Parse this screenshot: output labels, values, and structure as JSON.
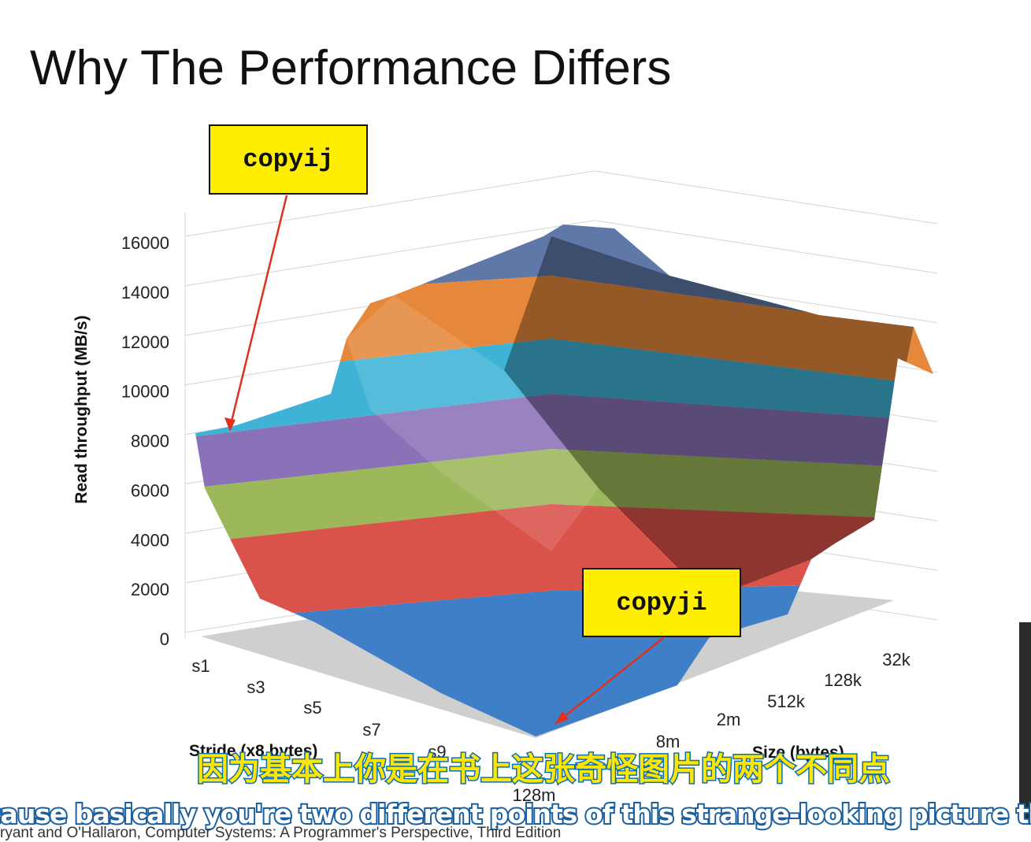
{
  "title": "Why The Performance Differs",
  "chart": {
    "y_axis_title": "Read throughput (MB/s)",
    "y_tick_labels": [
      "16000",
      "14000",
      "12000",
      "10000",
      "8000",
      "6000",
      "4000",
      "2000",
      "0"
    ],
    "stride_labels": [
      "s1",
      "s3",
      "s5",
      "s7",
      "s9"
    ],
    "stride_axis_title": "Stride (x8 bytes)",
    "size_labels": [
      "32k",
      "128k",
      "512k",
      "2m",
      "8m",
      "128m"
    ],
    "size_axis_title": "Size (bytes)"
  },
  "callouts": [
    "copyij",
    "copyji"
  ],
  "subtitles": {
    "chinese": "因为基本上你是在书上这张奇怪图片的两个不同点",
    "english": "cause basically you're two different points of this strange-looking picture that's on"
  },
  "citation": "ryant and O'Hallaron, Computer Systems: A Programmer's Perspective, Third Edition"
}
